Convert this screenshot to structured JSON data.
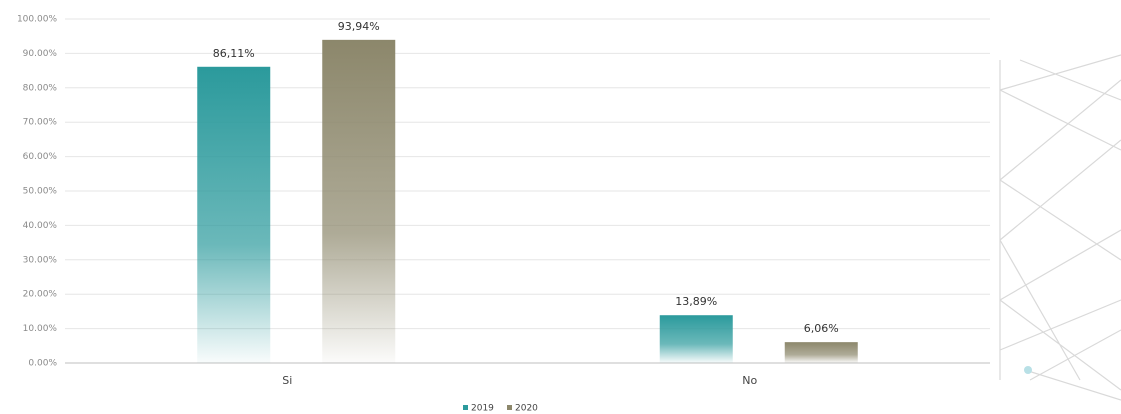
{
  "chart_data": {
    "type": "bar",
    "categories": [
      "Si",
      "No"
    ],
    "series": [
      {
        "name": "2019",
        "color": "#2b9a9c",
        "values": [
          86.11,
          13.89
        ],
        "value_labels": [
          "86,11%",
          "13,89%"
        ]
      },
      {
        "name": "2020",
        "color": "#8c876b",
        "values": [
          93.94,
          6.06
        ],
        "value_labels": [
          "93,94%",
          "6,06%"
        ]
      }
    ],
    "ylim": [
      0,
      100
    ],
    "yticks": [
      {
        "value": 0,
        "label": "0.00%"
      },
      {
        "value": 10,
        "label": "10.00%"
      },
      {
        "value": 20,
        "label": "20.00%"
      },
      {
        "value": 30,
        "label": "30.00%"
      },
      {
        "value": 40,
        "label": "40.00%"
      },
      {
        "value": 50,
        "label": "50.00%"
      },
      {
        "value": 60,
        "label": "60.00%"
      },
      {
        "value": 70,
        "label": "70.00%"
      },
      {
        "value": 80,
        "label": "80.00%"
      },
      {
        "value": 90,
        "label": "90.00%"
      },
      {
        "value": 100,
        "label": "100.00%"
      }
    ],
    "grid": true,
    "legend": "bottom"
  }
}
